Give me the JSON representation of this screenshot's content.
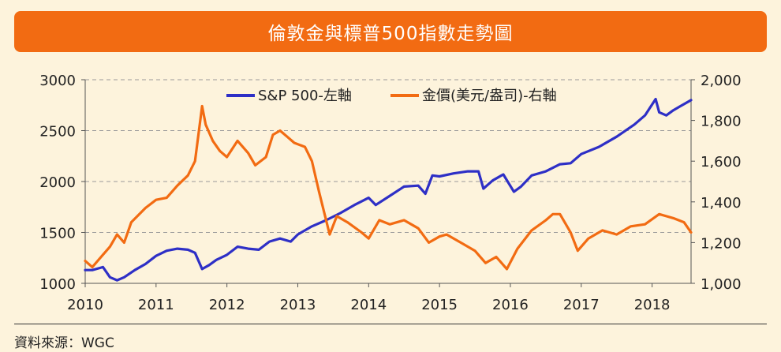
{
  "title": "倫敦金與標普500指數走勢圖",
  "source": "資料來源：WGC",
  "colors": {
    "sp500": "#2e2fc6",
    "gold": "#f26b12",
    "title_bg": "#f26b12"
  },
  "chart_data": {
    "type": "line",
    "title": "倫敦金與標普500指數走勢圖",
    "x_ticks": [
      "2010",
      "2011",
      "2012",
      "2013",
      "2014",
      "2015",
      "2016",
      "2017",
      "2018"
    ],
    "x_range": [
      2010.0,
      2018.55
    ],
    "y_left": {
      "range": [
        1000,
        3000
      ],
      "ticks": [
        "1000",
        "1500",
        "2000",
        "2500",
        "3000"
      ]
    },
    "y_right": {
      "range": [
        1000,
        2000
      ],
      "ticks": [
        "1,000",
        "1,200",
        "1,400",
        "1,600",
        "1,800",
        "2,000"
      ]
    },
    "grid": true,
    "legend_position": "top-center",
    "series": [
      {
        "name": "S&P 500-左軸",
        "axis": "left",
        "x": [
          2010.0,
          2010.1,
          2010.25,
          2010.35,
          2010.45,
          2010.55,
          2010.7,
          2010.85,
          2011.0,
          2011.15,
          2011.3,
          2011.45,
          2011.55,
          2011.65,
          2011.75,
          2011.85,
          2012.0,
          2012.15,
          2012.3,
          2012.45,
          2012.6,
          2012.75,
          2012.9,
          2013.0,
          2013.2,
          2013.4,
          2013.6,
          2013.8,
          2014.0,
          2014.1,
          2014.3,
          2014.5,
          2014.7,
          2014.8,
          2014.9,
          2015.0,
          2015.2,
          2015.4,
          2015.55,
          2015.62,
          2015.75,
          2015.9,
          2016.05,
          2016.15,
          2016.3,
          2016.5,
          2016.7,
          2016.85,
          2017.0,
          2017.25,
          2017.5,
          2017.75,
          2017.9,
          2018.05,
          2018.1,
          2018.2,
          2018.3,
          2018.4,
          2018.55
        ],
        "y": [
          1130,
          1130,
          1160,
          1060,
          1030,
          1060,
          1130,
          1190,
          1270,
          1320,
          1340,
          1330,
          1300,
          1140,
          1180,
          1230,
          1280,
          1360,
          1340,
          1330,
          1410,
          1440,
          1410,
          1480,
          1560,
          1620,
          1690,
          1770,
          1840,
          1770,
          1860,
          1950,
          1960,
          1880,
          2060,
          2050,
          2080,
          2100,
          2100,
          1930,
          2010,
          2070,
          1900,
          1950,
          2060,
          2100,
          2170,
          2180,
          2270,
          2340,
          2440,
          2560,
          2650,
          2810,
          2680,
          2650,
          2700,
          2740,
          2800
        ]
      },
      {
        "name": "金價(美元/盎司)-右軸",
        "axis": "right",
        "x": [
          2010.0,
          2010.1,
          2010.2,
          2010.35,
          2010.45,
          2010.55,
          2010.65,
          2010.85,
          2011.0,
          2011.15,
          2011.3,
          2011.45,
          2011.55,
          2011.65,
          2011.7,
          2011.8,
          2011.9,
          2012.0,
          2012.15,
          2012.3,
          2012.4,
          2012.55,
          2012.65,
          2012.75,
          2012.85,
          2012.95,
          2013.1,
          2013.2,
          2013.3,
          2013.35,
          2013.45,
          2013.55,
          2013.7,
          2013.9,
          2014.0,
          2014.15,
          2014.3,
          2014.5,
          2014.7,
          2014.85,
          2015.0,
          2015.1,
          2015.3,
          2015.5,
          2015.65,
          2015.8,
          2015.95,
          2016.1,
          2016.3,
          2016.5,
          2016.6,
          2016.7,
          2016.85,
          2016.95,
          2017.1,
          2017.3,
          2017.5,
          2017.7,
          2017.9,
          2018.1,
          2018.2,
          2018.3,
          2018.45,
          2018.55
        ],
        "y": [
          1110,
          1080,
          1120,
          1180,
          1240,
          1200,
          1300,
          1370,
          1410,
          1420,
          1480,
          1530,
          1600,
          1870,
          1780,
          1700,
          1650,
          1620,
          1700,
          1640,
          1580,
          1620,
          1730,
          1750,
          1720,
          1690,
          1670,
          1600,
          1450,
          1380,
          1240,
          1330,
          1300,
          1250,
          1220,
          1310,
          1290,
          1310,
          1270,
          1200,
          1230,
          1240,
          1200,
          1160,
          1100,
          1130,
          1070,
          1170,
          1260,
          1310,
          1340,
          1340,
          1250,
          1160,
          1220,
          1260,
          1240,
          1280,
          1290,
          1340,
          1330,
          1320,
          1300,
          1250
        ]
      }
    ]
  }
}
